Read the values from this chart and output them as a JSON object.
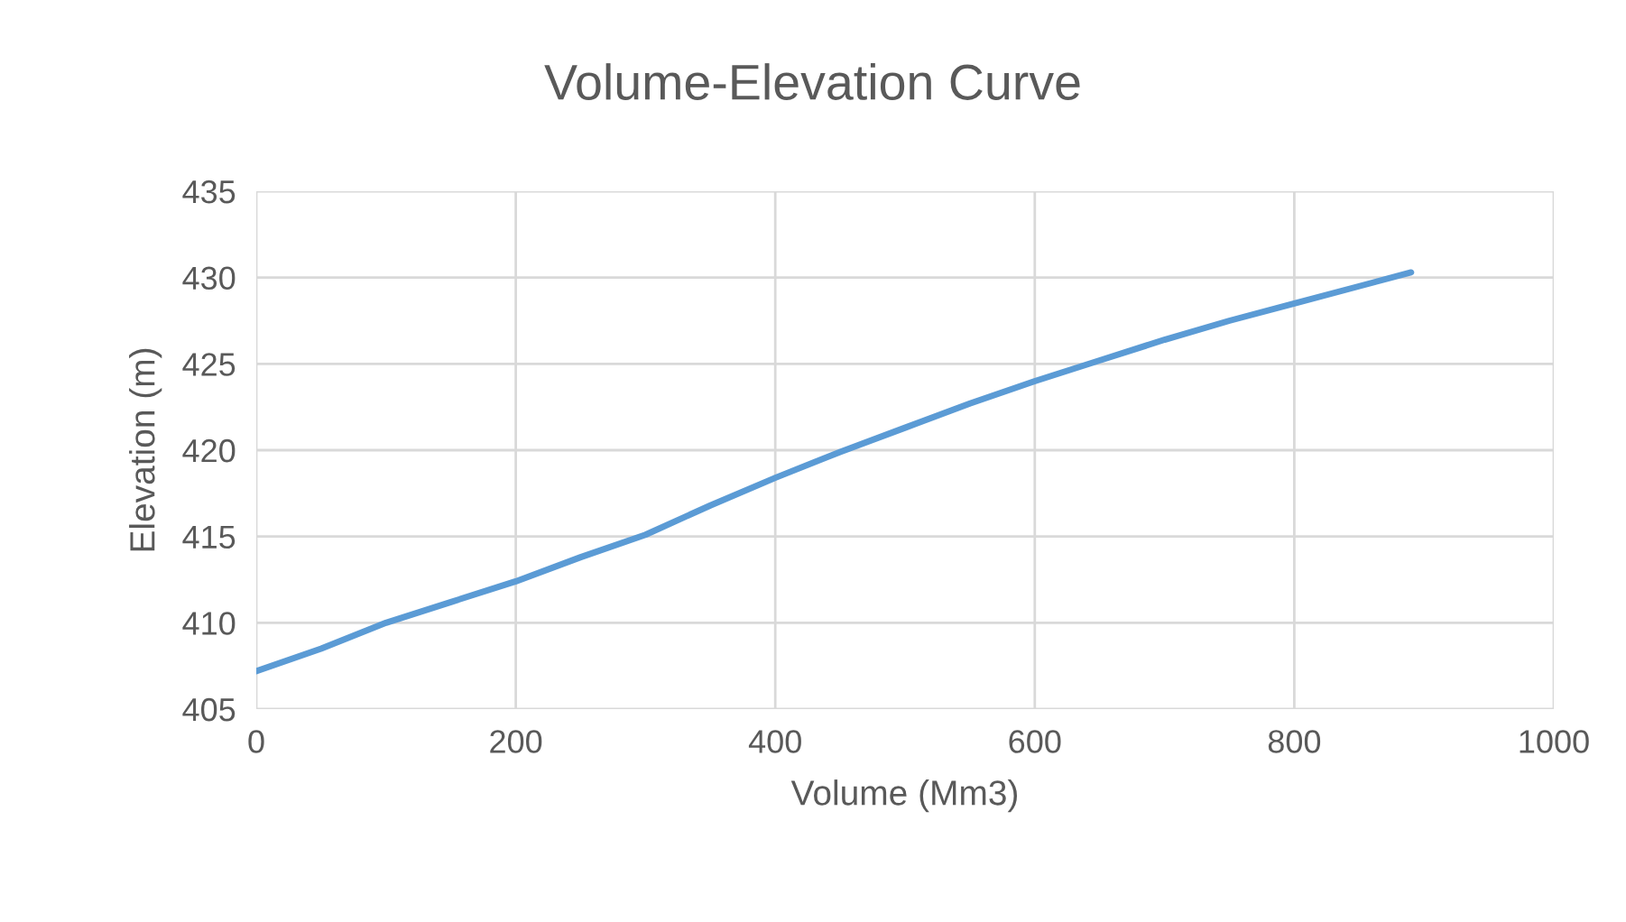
{
  "chart_data": {
    "type": "line",
    "title": "Volume-Elevation Curve",
    "xlabel": "Volume (Mm3)",
    "ylabel": "Elevation (m)",
    "x": [
      0,
      50,
      100,
      150,
      200,
      250,
      300,
      350,
      400,
      450,
      500,
      550,
      600,
      650,
      700,
      750,
      800,
      850,
      890
    ],
    "series": [
      {
        "color": "#5b9bd5",
        "values": [
          407.2,
          408.5,
          410.0,
          411.2,
          412.4,
          413.8,
          415.1,
          416.8,
          418.4,
          419.9,
          421.3,
          422.7,
          424.0,
          425.2,
          426.4,
          427.5,
          428.5,
          429.5,
          430.3
        ]
      }
    ],
    "xlim": [
      0,
      1000
    ],
    "xticks": [
      0,
      200,
      400,
      600,
      800,
      1000
    ],
    "ylim": [
      405,
      435
    ],
    "yticks": [
      405,
      410,
      415,
      420,
      425,
      430,
      435
    ],
    "grid": true,
    "marker": "none",
    "line_style": "solid"
  }
}
